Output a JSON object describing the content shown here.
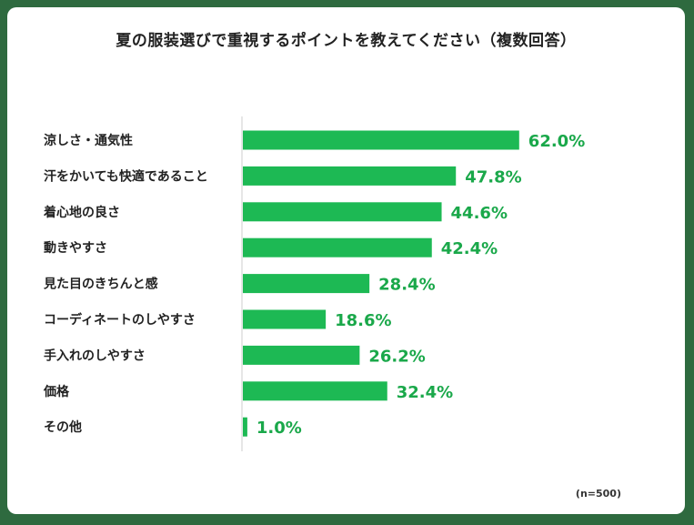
{
  "chart_data": {
    "type": "bar",
    "orientation": "horizontal",
    "title": "夏の服装選びで重視するポイントを教えてください（複数回答）",
    "categories": [
      "涼しさ・通気性",
      "汗をかいても快適であること",
      "着心地の良さ",
      "動きやすさ",
      "見た目のきちんと感",
      "コーディネートのしやすさ",
      "手入れのしやすさ",
      "価格",
      "その他"
    ],
    "values": [
      62.0,
      47.8,
      44.6,
      42.4,
      28.4,
      18.6,
      26.2,
      32.4,
      1.0
    ],
    "value_labels": [
      "62.0%",
      "47.8%",
      "44.6%",
      "42.4%",
      "28.4%",
      "18.6%",
      "26.2%",
      "32.4%",
      "1.0%"
    ],
    "xlim": [
      0,
      100
    ],
    "grid": false,
    "note": "(n=500)",
    "colors": {
      "bar": "#1db954",
      "label": "#1aa84a",
      "frame": "#2e6a3f"
    }
  }
}
